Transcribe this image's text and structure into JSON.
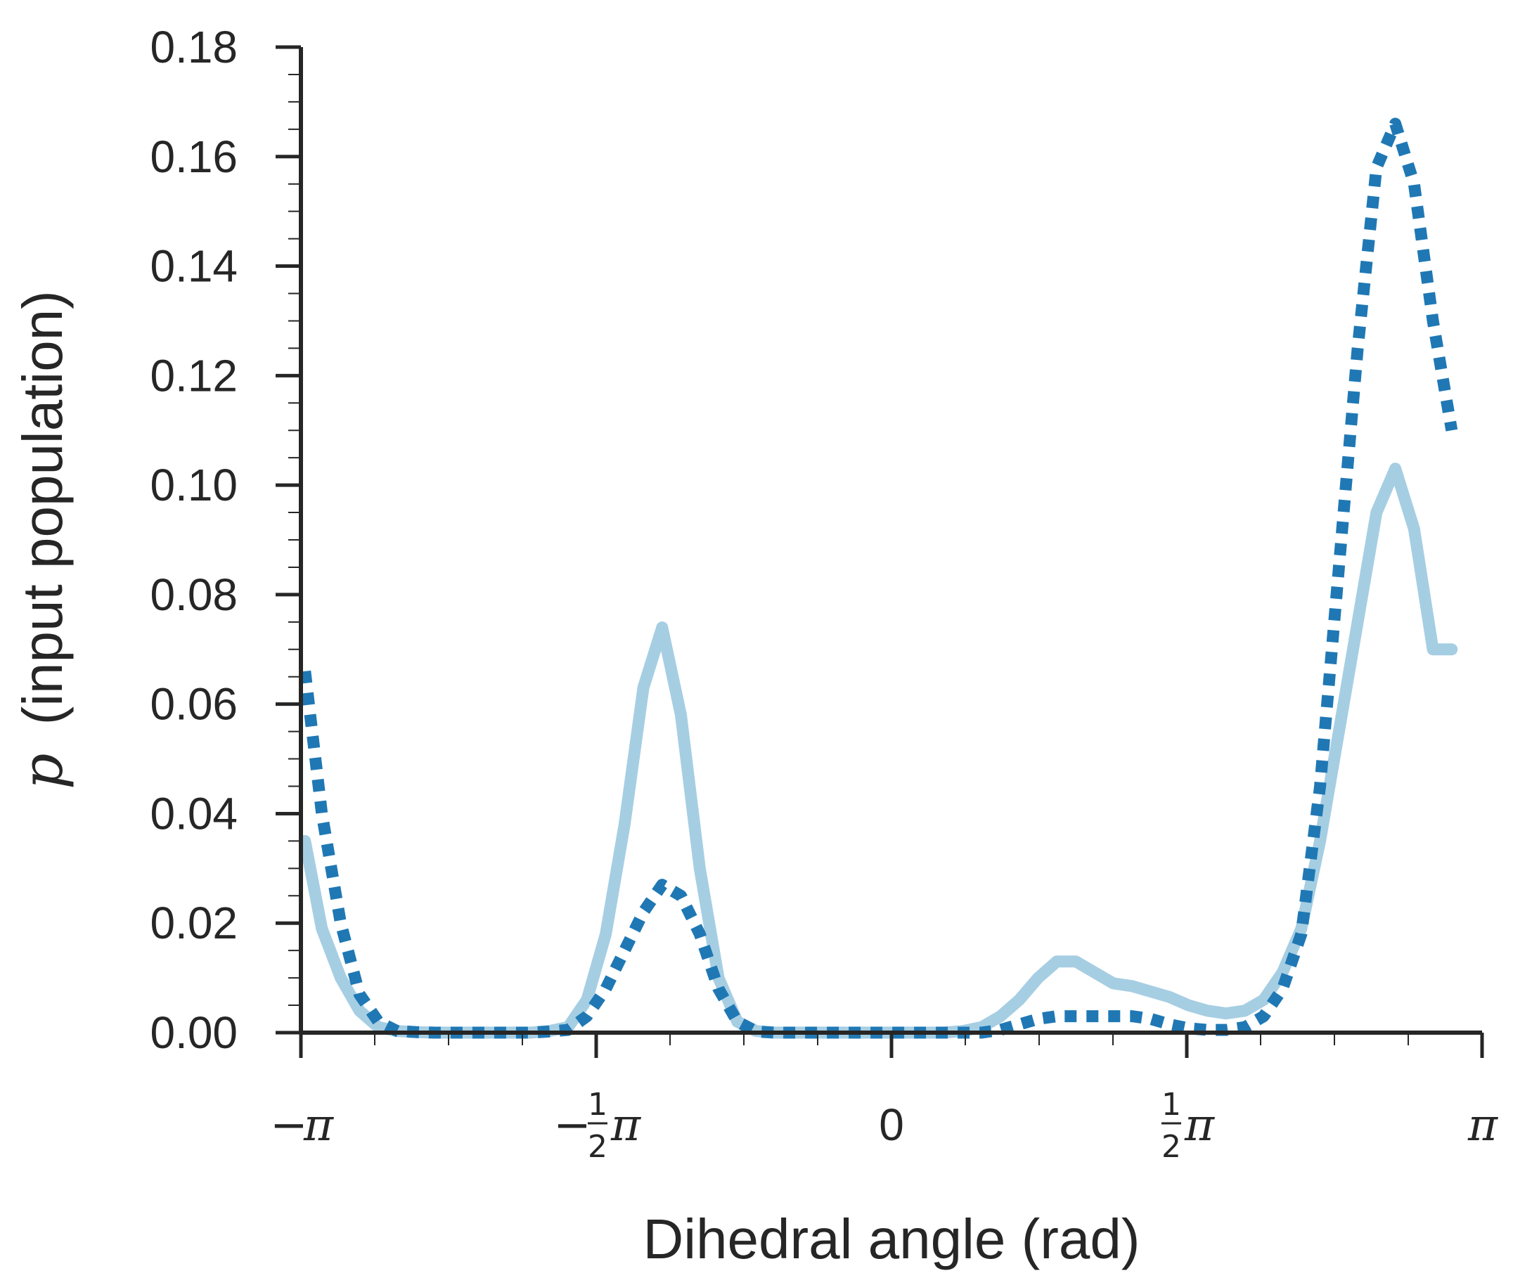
{
  "chart_data": {
    "type": "line",
    "title": "",
    "xlabel": "Dihedral angle (rad)",
    "ylabel_symbol": "p",
    "ylabel_rest": "(input population)",
    "xlim": [
      -3.14159,
      3.14159
    ],
    "ylim": [
      0,
      0.18
    ],
    "grid": false,
    "legend": "none",
    "yticks": [
      "0.00",
      "0.02",
      "0.04",
      "0.06",
      "0.08",
      "0.10",
      "0.12",
      "0.14",
      "0.16",
      "0.18"
    ],
    "xticks": [
      {
        "value": -3.14159,
        "sign": "−",
        "frac": "",
        "frac_num": "",
        "frac_den": "",
        "symbol": "π",
        "plain": ""
      },
      {
        "value": -1.5708,
        "sign": "−",
        "frac": "1/2",
        "frac_num": "1",
        "frac_den": "2",
        "symbol": "π",
        "plain": ""
      },
      {
        "value": 0,
        "sign": "",
        "frac": "",
        "frac_num": "",
        "frac_den": "",
        "symbol": "",
        "plain": "0"
      },
      {
        "value": 1.5708,
        "sign": "",
        "frac": "1/2",
        "frac_num": "1",
        "frac_den": "2",
        "symbol": "π",
        "plain": ""
      },
      {
        "value": 3.14159,
        "sign": "",
        "frac": "",
        "frac_num": "",
        "frac_den": "",
        "symbol": "π",
        "plain": ""
      }
    ],
    "series": [
      {
        "name": "solid light blue",
        "color": "#a6cee3",
        "style": "solid",
        "x": [
          -3.12,
          -3.03,
          -2.93,
          -2.83,
          -2.73,
          -2.63,
          -2.53,
          -2.43,
          -2.33,
          -2.22,
          -2.12,
          -2.02,
          -1.92,
          -1.82,
          -1.72,
          -1.62,
          -1.52,
          -1.42,
          -1.32,
          -1.22,
          -1.12,
          -1.02,
          -0.92,
          -0.82,
          -0.72,
          -0.62,
          -0.52,
          -0.42,
          -0.32,
          -0.22,
          -0.12,
          -0.02,
          0.08,
          0.18,
          0.28,
          0.38,
          0.48,
          0.58,
          0.68,
          0.78,
          0.88,
          0.98,
          1.08,
          1.18,
          1.28,
          1.38,
          1.48,
          1.58,
          1.68,
          1.78,
          1.88,
          1.98,
          2.08,
          2.18,
          2.28,
          2.38,
          2.48,
          2.58,
          2.68,
          2.78,
          2.88,
          2.98
        ],
        "y": [
          0.035,
          0.019,
          0.01,
          0.004,
          0.001,
          0.0003,
          0.0001,
          0.0,
          0.0,
          0.0,
          0.0,
          0.0,
          0.0,
          0.0003,
          0.001,
          0.006,
          0.018,
          0.038,
          0.063,
          0.074,
          0.058,
          0.03,
          0.01,
          0.002,
          0.0003,
          0.0,
          0.0,
          0.0,
          0.0,
          0.0,
          0.0,
          0.0,
          0.0,
          0.0,
          0.0,
          0.0003,
          0.001,
          0.003,
          0.006,
          0.01,
          0.013,
          0.013,
          0.011,
          0.009,
          0.0085,
          0.0075,
          0.0065,
          0.005,
          0.004,
          0.0035,
          0.004,
          0.006,
          0.011,
          0.019,
          0.035,
          0.055,
          0.075,
          0.095,
          0.103,
          0.092,
          0.07,
          0.07
        ]
      },
      {
        "name": "dotted dark blue",
        "color": "#1f78b4",
        "style": "dotted",
        "x": [
          -3.12,
          -3.03,
          -2.93,
          -2.83,
          -2.73,
          -2.63,
          -2.53,
          -2.43,
          -2.33,
          -2.22,
          -2.12,
          -2.02,
          -1.92,
          -1.82,
          -1.72,
          -1.62,
          -1.52,
          -1.42,
          -1.32,
          -1.22,
          -1.12,
          -1.02,
          -0.92,
          -0.82,
          -0.72,
          -0.62,
          -0.52,
          -0.42,
          -0.32,
          -0.22,
          -0.12,
          -0.02,
          0.08,
          0.18,
          0.28,
          0.38,
          0.48,
          0.58,
          0.68,
          0.78,
          0.88,
          0.98,
          1.08,
          1.18,
          1.28,
          1.38,
          1.48,
          1.58,
          1.68,
          1.78,
          1.88,
          1.98,
          2.08,
          2.18,
          2.28,
          2.38,
          2.48,
          2.58,
          2.68,
          2.78,
          2.88,
          2.98
        ],
        "y": [
          0.066,
          0.04,
          0.02,
          0.007,
          0.002,
          0.0003,
          0.0001,
          0.0,
          0.0,
          0.0,
          0.0,
          0.0,
          0.0,
          0.0002,
          0.0005,
          0.003,
          0.008,
          0.015,
          0.022,
          0.027,
          0.025,
          0.018,
          0.008,
          0.002,
          0.0002,
          0.0,
          0.0,
          0.0,
          0.0,
          0.0,
          0.0,
          0.0,
          0.0,
          0.0,
          0.0,
          0.0,
          0.0,
          0.0005,
          0.0015,
          0.0025,
          0.003,
          0.003,
          0.003,
          0.003,
          0.003,
          0.0025,
          0.0015,
          0.0008,
          0.0005,
          0.0005,
          0.001,
          0.003,
          0.008,
          0.018,
          0.045,
          0.085,
          0.125,
          0.158,
          0.166,
          0.155,
          0.13,
          0.11
        ]
      }
    ]
  }
}
